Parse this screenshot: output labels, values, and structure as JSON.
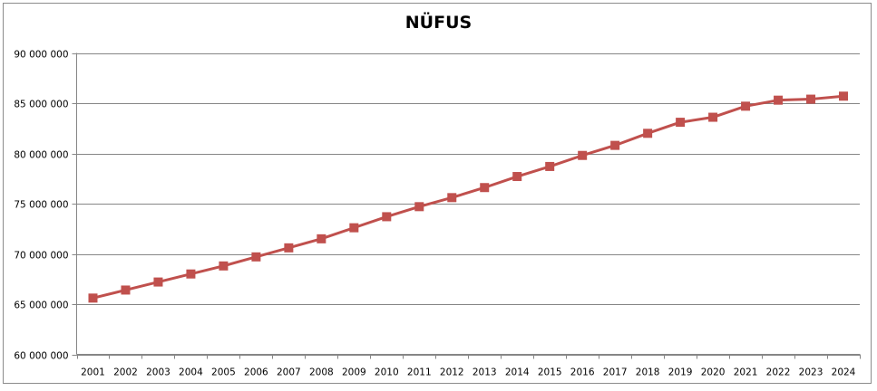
{
  "chart_data": {
    "type": "line",
    "title": "NÜFUS",
    "categories": [
      "2001",
      "2002",
      "2003",
      "2004",
      "2005",
      "2006",
      "2007",
      "2008",
      "2009",
      "2010",
      "2011",
      "2012",
      "2013",
      "2014",
      "2015",
      "2016",
      "2017",
      "2018",
      "2019",
      "2020",
      "2021",
      "2022",
      "2023",
      "2024"
    ],
    "series": [
      {
        "values": [
          65600000,
          66400000,
          67200000,
          68000000,
          68800000,
          69700000,
          70600000,
          71500000,
          72600000,
          73700000,
          74700000,
          75600000,
          76600000,
          77700000,
          78700000,
          79800000,
          80800000,
          82000000,
          83100000,
          83600000,
          84700000,
          85300000,
          85400000,
          85700000
        ],
        "color": "#c0504d",
        "marker": "square"
      }
    ],
    "ylim": [
      60000000,
      90000000
    ],
    "yticks": [
      60000000,
      65000000,
      70000000,
      75000000,
      80000000,
      85000000,
      90000000
    ],
    "ytick_labels": [
      "60 000 000",
      "65 000 000",
      "70 000 000",
      "75 000 000",
      "80 000 000",
      "85 000 000",
      "90 000 000"
    ],
    "grid": true,
    "legend": "none",
    "xlabel": "",
    "ylabel": ""
  }
}
